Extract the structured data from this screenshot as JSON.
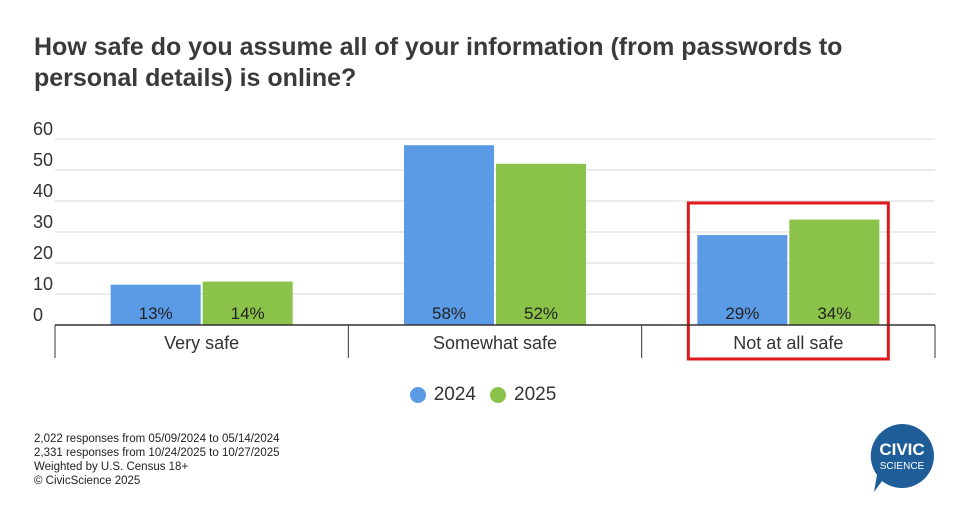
{
  "header": {
    "title": "How safe do you assume all of your information (from passwords to personal details) is online?"
  },
  "chart_data": {
    "type": "bar",
    "categories": [
      "Very safe",
      "Somewhat safe",
      "Not at all safe"
    ],
    "series": [
      {
        "name": "2024",
        "values": [
          13,
          58,
          29
        ],
        "labels": [
          "13%",
          "58%",
          "29%"
        ],
        "color": "#5b9be6"
      },
      {
        "name": "2025",
        "values": [
          14,
          52,
          34
        ],
        "labels": [
          "14%",
          "52%",
          "34%"
        ],
        "color": "#8bc34a"
      }
    ],
    "yticks": [
      "0",
      "10",
      "20",
      "30",
      "40",
      "50",
      "60"
    ],
    "ylim": [
      0,
      60
    ],
    "grid": true,
    "legend_position": "bottom",
    "highlight_category": "Not at all safe",
    "highlight_color": "#e0191b"
  },
  "footnotes": [
    "2,022 responses from 05/09/2024 to 05/14/2024",
    "2,331 responses from 10/24/2025 to 10/27/2025",
    "Weighted by U.S. Census 18+",
    "© CivicScience 2025"
  ],
  "logo": {
    "line1": "CIVIC",
    "line2": "SCIENCE",
    "color": "#1f5d99"
  }
}
